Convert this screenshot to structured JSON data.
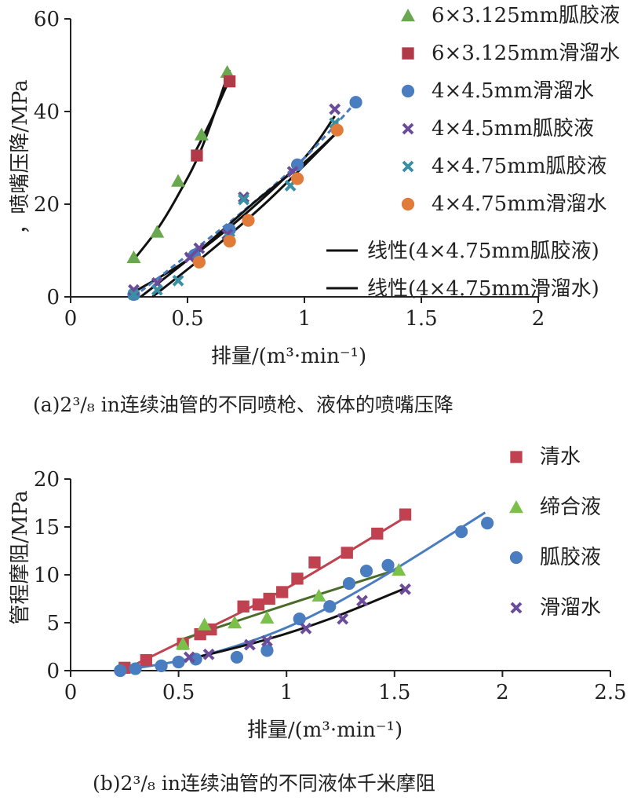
{
  "chart_data": [
    {
      "type": "scatter",
      "caption": "(a)2³/₈ in连续油管的不同喷枪、液体的喷嘴压降",
      "xlabel": "排量/(m³·min⁻¹)",
      "ylabel": "，喷嘴压降/MPa",
      "xlim": [
        0,
        2
      ],
      "ylim": [
        0,
        60
      ],
      "xticks": [
        "0",
        "0.5",
        "1",
        "1.5",
        "2"
      ],
      "xtick_values": [
        0,
        0.5,
        1,
        1.5,
        2
      ],
      "yticks": [
        "0",
        "20",
        "40",
        "60"
      ],
      "ytick_values": [
        0,
        20,
        40,
        60
      ],
      "grid": false,
      "legend_position": "top-right",
      "series": [
        {
          "name": "6×3.125mm胍胶液",
          "marker": "triangle",
          "color": "#6aa84f",
          "points": [
            [
              0.27,
              8.5
            ],
            [
              0.37,
              14
            ],
            [
              0.46,
              25
            ],
            [
              0.56,
              35
            ],
            [
              0.67,
              48.5
            ]
          ]
        },
        {
          "name": "6×3.125mm滑溜水",
          "marker": "square",
          "color": "#b03a48",
          "points": [
            [
              0.54,
              30.5
            ],
            [
              0.68,
              46.5
            ]
          ]
        },
        {
          "name": "4×4.5mm滑溜水",
          "marker": "circle",
          "color": "#4a7cc0",
          "points": [
            [
              0.27,
              0.5
            ],
            [
              0.53,
              9
            ],
            [
              0.68,
              14.5
            ],
            [
              0.97,
              28.5
            ],
            [
              1.22,
              42
            ]
          ]
        },
        {
          "name": "4×4.5mm胍胶液",
          "marker": "cross",
          "color": "#6b4c9a",
          "points": [
            [
              0.27,
              1.5
            ],
            [
              0.37,
              3
            ],
            [
              0.51,
              8.5
            ],
            [
              0.55,
              10.5
            ],
            [
              0.67,
              13.5
            ],
            [
              0.74,
              21.5
            ],
            [
              0.95,
              27
            ],
            [
              1.13,
              40.5
            ]
          ]
        },
        {
          "name": "4×4.75mm胍胶液",
          "marker": "cross",
          "color": "#3a8fa3",
          "points": [
            [
              0.27,
              0.5
            ],
            [
              0.37,
              1.5
            ],
            [
              0.46,
              3.5
            ],
            [
              0.68,
              12.5
            ],
            [
              0.74,
              21
            ],
            [
              0.94,
              24
            ],
            [
              1.13,
              37.5
            ]
          ]
        },
        {
          "name": "4×4.75mm滑溜水",
          "marker": "circle",
          "color": "#e07b39",
          "points": [
            [
              0.55,
              7.5
            ],
            [
              0.68,
              12
            ],
            [
              0.76,
              16.5
            ],
            [
              0.97,
              25.5
            ],
            [
              1.14,
              36
            ]
          ]
        }
      ],
      "lines": [
        {
          "name": "线性(4×4.75mm胍胶液)",
          "color": "#111111",
          "dash": false,
          "points": [
            [
              0.3,
              0
            ],
            [
              0.55,
              10
            ],
            [
              0.8,
              21
            ],
            [
              1.0,
              29
            ],
            [
              1.15,
              36
            ]
          ]
        },
        {
          "name": "线性(4×4.75mm滑溜水)",
          "color": "#111111",
          "dash": false,
          "points": [
            [
              0.35,
              0
            ],
            [
              0.6,
              10
            ],
            [
              0.85,
              21
            ],
            [
              1.15,
              36
            ]
          ]
        }
      ],
      "unlabeled_fits": [
        {
          "color": "#111111",
          "dash": false,
          "points": [
            [
              0.27,
              8
            ],
            [
              0.37,
              14.5
            ],
            [
              0.46,
              22
            ],
            [
              0.56,
              32
            ],
            [
              0.68,
              49
            ]
          ]
        },
        {
          "color": "#111111",
          "dash": false,
          "points": [
            [
              0.52,
              30
            ],
            [
              0.6,
              38
            ],
            [
              0.68,
              47
            ]
          ]
        },
        {
          "color": "#111111",
          "dash": false,
          "points": [
            [
              0.27,
              1
            ],
            [
              0.5,
              8
            ],
            [
              0.75,
              18
            ],
            [
              1.0,
              30
            ],
            [
              1.13,
              39
            ]
          ]
        },
        {
          "color": "#4a7cc0",
          "dash": true,
          "points": [
            [
              0.27,
              0
            ],
            [
              0.5,
              9
            ],
            [
              0.75,
              19
            ],
            [
              1.0,
              30
            ],
            [
              1.22,
              42
            ]
          ]
        }
      ]
    },
    {
      "type": "scatter",
      "caption": "(b)2³/₈ in连续油管的不同液体千米摩阻",
      "xlabel": "排量/(m³·min⁻¹)",
      "ylabel": "管程摩阻/MPa",
      "xlim": [
        0,
        2.5
      ],
      "ylim": [
        0,
        20
      ],
      "xticks": [
        "0",
        "0.5",
        "1",
        "1.5",
        "2",
        "2.5"
      ],
      "xtick_values": [
        0,
        0.5,
        1,
        1.5,
        2,
        2.5
      ],
      "yticks": [
        "0",
        "5",
        "10",
        "15",
        "20"
      ],
      "ytick_values": [
        0,
        5,
        10,
        15,
        20
      ],
      "grid": false,
      "legend_position": "top-right",
      "series": [
        {
          "name": "清水",
          "marker": "square",
          "color": "#c0414f",
          "points": [
            [
              0.25,
              0.3
            ],
            [
              0.35,
              1.1
            ],
            [
              0.52,
              2.8
            ],
            [
              0.6,
              3.8
            ],
            [
              0.65,
              4.3
            ],
            [
              0.8,
              6.7
            ],
            [
              0.87,
              6.9
            ],
            [
              0.92,
              7.5
            ],
            [
              0.98,
              8.2
            ],
            [
              1.05,
              9.6
            ],
            [
              1.13,
              11.3
            ],
            [
              1.28,
              12.3
            ],
            [
              1.42,
              14.3
            ],
            [
              1.55,
              16.3
            ]
          ]
        },
        {
          "name": "缔合液",
          "marker": "triangle",
          "color": "#7cbf4a",
          "points": [
            [
              0.52,
              2.8
            ],
            [
              0.62,
              4.8
            ],
            [
              0.76,
              5.0
            ],
            [
              0.91,
              5.5
            ],
            [
              1.15,
              7.8
            ],
            [
              1.52,
              10.5
            ]
          ]
        },
        {
          "name": "胍胶液",
          "marker": "circle",
          "color": "#4a7cc0",
          "points": [
            [
              0.23,
              0
            ],
            [
              0.3,
              0.2
            ],
            [
              0.42,
              0.5
            ],
            [
              0.5,
              0.9
            ],
            [
              0.58,
              1.2
            ],
            [
              0.77,
              1.4
            ],
            [
              0.91,
              2.1
            ],
            [
              1.06,
              5.4
            ],
            [
              1.2,
              6.7
            ],
            [
              1.29,
              9.1
            ],
            [
              1.37,
              10.4
            ],
            [
              1.47,
              11.0
            ],
            [
              1.81,
              14.5
            ],
            [
              1.93,
              15.4
            ]
          ]
        },
        {
          "name": "滑溜水",
          "marker": "cross",
          "color": "#6b4c9a",
          "points": [
            [
              0.55,
              1.4
            ],
            [
              0.64,
              1.7
            ],
            [
              0.83,
              2.7
            ],
            [
              0.91,
              3.1
            ],
            [
              1.09,
              4.4
            ],
            [
              1.26,
              5.4
            ],
            [
              1.35,
              7.3
            ],
            [
              1.55,
              8.5
            ]
          ]
        }
      ],
      "fits": [
        {
          "color": "#c0414f",
          "points": [
            [
              0.25,
              0.1
            ],
            [
              0.6,
              4.0
            ],
            [
              1.0,
              8.6
            ],
            [
              1.55,
              16.0
            ]
          ]
        },
        {
          "color": "#4a6b2a",
          "points": [
            [
              0.52,
              3.3
            ],
            [
              0.8,
              5.4
            ],
            [
              1.1,
              7.6
            ],
            [
              1.52,
              10.6
            ]
          ]
        },
        {
          "color": "#4a7cc0",
          "points": [
            [
              0.23,
              0
            ],
            [
              0.6,
              1.5
            ],
            [
              1.0,
              4.5
            ],
            [
              1.4,
              9.2
            ],
            [
              1.92,
              16.5
            ]
          ]
        },
        {
          "color": "#111111",
          "points": [
            [
              0.55,
              1.2
            ],
            [
              0.9,
              3.2
            ],
            [
              1.2,
              5.4
            ],
            [
              1.55,
              8.6
            ]
          ]
        }
      ]
    }
  ]
}
